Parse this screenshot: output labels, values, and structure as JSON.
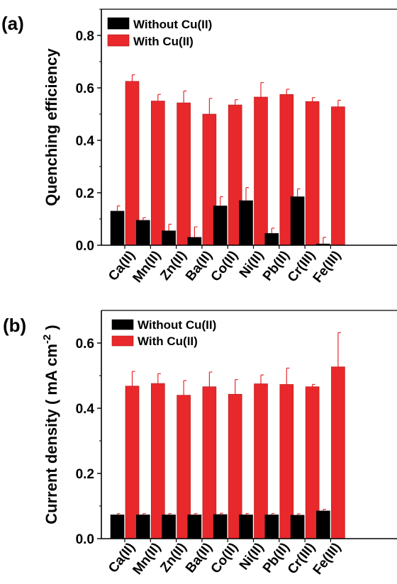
{
  "colors": {
    "without": "#000000",
    "with": "#e8282b",
    "error": "#e8282b",
    "axis": "#000000"
  },
  "chart_data": [
    {
      "type": "bar",
      "panel_label": "(a)",
      "ylabel": "Quenching efficiency",
      "ylim": [
        0,
        0.9
      ],
      "yticks": [
        "0.0",
        "0.2",
        "0.4",
        "0.6",
        "0.8"
      ],
      "categories": [
        "Ca(II)",
        "Mn(II)",
        "Zn(II)",
        "Ba(II)",
        "Co(II)",
        "Ni(II)",
        "Pb(II)",
        "Cr(III)",
        "Fe(III)"
      ],
      "legend_position": "top-left",
      "series": [
        {
          "name": "Without Cu(II)",
          "values": [
            0.13,
            0.095,
            0.055,
            0.03,
            0.15,
            0.17,
            0.045,
            0.185,
            0.005
          ],
          "errors": [
            0.02,
            0.01,
            0.025,
            0.04,
            0.035,
            0.05,
            0.02,
            0.03,
            0.025
          ]
        },
        {
          "name": "With Cu(II)",
          "values": [
            0.625,
            0.55,
            0.543,
            0.5,
            0.535,
            0.565,
            0.575,
            0.548,
            0.528
          ],
          "errors": [
            0.025,
            0.025,
            0.045,
            0.06,
            0.02,
            0.055,
            0.02,
            0.015,
            0.025
          ]
        }
      ]
    },
    {
      "type": "bar",
      "panel_label": "(b)",
      "ylabel": "Current density ( mA cm",
      "ylabel_sup": "-2",
      "ylabel_tail": " )",
      "ylim": [
        0,
        0.7
      ],
      "yticks": [
        "0.0",
        "0.2",
        "0.4",
        "0.6"
      ],
      "categories": [
        "Ca(II)",
        "Mn(II)",
        "Zn(II)",
        "Ba(II)",
        "Co(II)",
        "Ni(II)",
        "Pb(II)",
        "Cr(III)",
        "Fe(III)"
      ],
      "legend_position": "top-left",
      "series": [
        {
          "name": "Without Cu(II)",
          "values": [
            0.073,
            0.073,
            0.073,
            0.073,
            0.074,
            0.073,
            0.073,
            0.072,
            0.085
          ],
          "errors": [
            0.004,
            0.004,
            0.004,
            0.004,
            0.004,
            0.004,
            0.004,
            0.004,
            0.005
          ]
        },
        {
          "name": "With Cu(II)",
          "values": [
            0.468,
            0.476,
            0.44,
            0.466,
            0.443,
            0.475,
            0.473,
            0.466,
            0.527
          ],
          "errors": [
            0.045,
            0.03,
            0.045,
            0.045,
            0.045,
            0.027,
            0.05,
            0.007,
            0.105
          ]
        }
      ]
    }
  ]
}
